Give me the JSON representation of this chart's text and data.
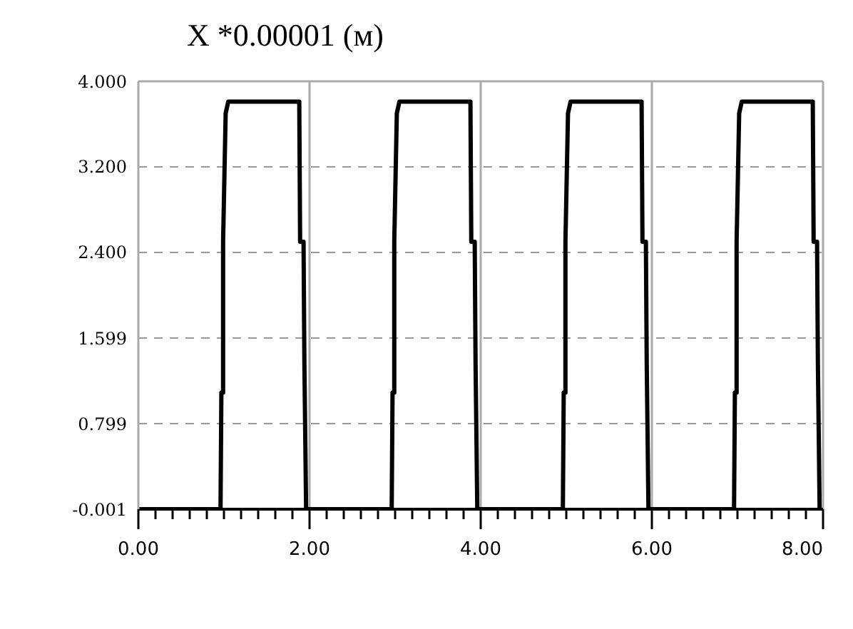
{
  "chart_data": {
    "type": "line",
    "title": "X *0.00001 (м)",
    "x": [
      0,
      0.96,
      0.97,
      0.99,
      0.99,
      1.02,
      1.05,
      1.88,
      1.89,
      1.93,
      1.94,
      1.96,
      2.96,
      2.97,
      2.99,
      2.99,
      3.02,
      3.05,
      3.88,
      3.89,
      3.93,
      3.94,
      3.96,
      4.96,
      4.97,
      4.99,
      4.99,
      5.02,
      5.05,
      5.88,
      5.89,
      5.93,
      5.94,
      5.96,
      6.96,
      6.97,
      6.99,
      6.99,
      7.02,
      7.05,
      7.88,
      7.89,
      7.93,
      7.94,
      7.96
    ],
    "series": [
      {
        "color": "#000000",
        "values": [
          -0.001,
          -0.001,
          1.09,
          1.09,
          2.5,
          3.7,
          3.81,
          3.81,
          2.5,
          2.5,
          1.36,
          -0.001,
          -0.001,
          1.09,
          1.09,
          2.5,
          3.7,
          3.81,
          3.81,
          2.5,
          2.5,
          1.36,
          -0.001,
          -0.001,
          1.09,
          1.09,
          2.5,
          3.7,
          3.81,
          3.81,
          2.5,
          2.5,
          1.36,
          -0.001,
          -0.001,
          1.09,
          1.09,
          2.5,
          3.7,
          3.81,
          3.81,
          2.5,
          2.5,
          1.36,
          -0.001
        ]
      }
    ],
    "xlim": [
      0,
      8
    ],
    "xticks": [
      {
        "value": 0,
        "label": "0.00"
      },
      {
        "value": 0.2,
        "label": null
      },
      {
        "value": 0.4,
        "label": null
      },
      {
        "value": 0.6,
        "label": null
      },
      {
        "value": 0.8,
        "label": null
      },
      {
        "value": 1,
        "label": null
      },
      {
        "value": 1.2,
        "label": null
      },
      {
        "value": 1.4,
        "label": null
      },
      {
        "value": 1.6,
        "label": null
      },
      {
        "value": 1.8,
        "label": null
      },
      {
        "value": 2,
        "label": "2.00"
      },
      {
        "value": 2.2,
        "label": null
      },
      {
        "value": 2.4,
        "label": null
      },
      {
        "value": 2.6,
        "label": null
      },
      {
        "value": 2.8,
        "label": null
      },
      {
        "value": 3,
        "label": null
      },
      {
        "value": 3.2,
        "label": null
      },
      {
        "value": 3.4,
        "label": null
      },
      {
        "value": 3.6,
        "label": null
      },
      {
        "value": 3.8,
        "label": null
      },
      {
        "value": 4,
        "label": "4.00"
      },
      {
        "value": 4.2,
        "label": null
      },
      {
        "value": 4.4,
        "label": null
      },
      {
        "value": 4.6,
        "label": null
      },
      {
        "value": 4.8,
        "label": null
      },
      {
        "value": 5,
        "label": null
      },
      {
        "value": 5.2,
        "label": null
      },
      {
        "value": 5.4,
        "label": null
      },
      {
        "value": 5.6,
        "label": null
      },
      {
        "value": 5.8,
        "label": null
      },
      {
        "value": 6,
        "label": "6.00"
      },
      {
        "value": 6.2,
        "label": null
      },
      {
        "value": 6.4,
        "label": null
      },
      {
        "value": 6.6,
        "label": null
      },
      {
        "value": 6.8,
        "label": null
      },
      {
        "value": 7,
        "label": null
      },
      {
        "value": 7.2,
        "label": null
      },
      {
        "value": 7.4,
        "label": null
      },
      {
        "value": 7.6,
        "label": null
      },
      {
        "value": 7.8,
        "label": null
      },
      {
        "value": 8,
        "label": "8.00"
      }
    ],
    "ylim": [
      -0.001,
      4.0
    ],
    "yticks": [
      {
        "value": -0.001,
        "label": "-0.001"
      },
      {
        "value": 0.799,
        "label": "0.799"
      },
      {
        "value": 1.599,
        "label": "1.599"
      },
      {
        "value": 2.4,
        "label": "2.400"
      },
      {
        "value": 3.2,
        "label": "3.200"
      },
      {
        "value": 4.0,
        "label": "4.000"
      }
    ],
    "grid": true,
    "marker": "none",
    "line_style": "solid"
  }
}
